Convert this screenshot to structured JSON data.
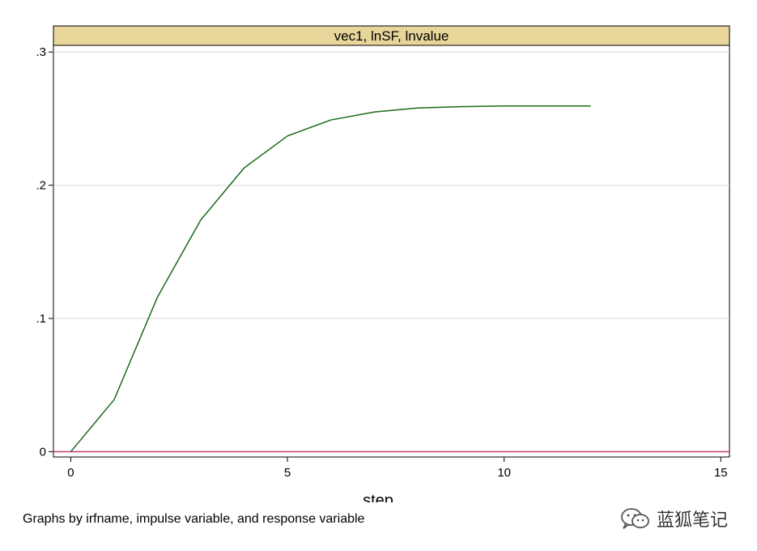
{
  "chart_data": {
    "type": "line",
    "panel_title": "vec1, lnSF, lnvalue",
    "xlabel": "step",
    "ylabel": "",
    "xlim": [
      -0.4,
      15.2
    ],
    "ylim": [
      -0.004,
      0.305
    ],
    "x_ticks": [
      0,
      5,
      10,
      15
    ],
    "x_tick_labels": [
      "0",
      "5",
      "10",
      "15"
    ],
    "y_ticks": [
      0,
      0.1,
      0.2,
      0.3
    ],
    "y_tick_labels": [
      "0",
      ".1",
      ".2",
      ".3"
    ],
    "grid": true,
    "series": [
      {
        "color": "#1a6b1a",
        "x": [
          0,
          1,
          2,
          3,
          4,
          5,
          6,
          7,
          8,
          9,
          10,
          11,
          12
        ],
        "y": [
          0,
          0.039,
          0.116,
          0.174,
          0.213,
          0.237,
          0.249,
          0.255,
          0.258,
          0.259,
          0.2595,
          0.2595,
          0.2595
        ]
      }
    ],
    "zero_line_color": "#c2447a",
    "note": "Graphs by irfname, impulse variable, and response variable"
  },
  "watermark": {
    "icon": "wechat-icon",
    "text": "蓝狐笔记"
  },
  "colors": {
    "panel_title_bg": "#e8d59a",
    "grid": "#d9d9d9",
    "frame": "#000000"
  }
}
